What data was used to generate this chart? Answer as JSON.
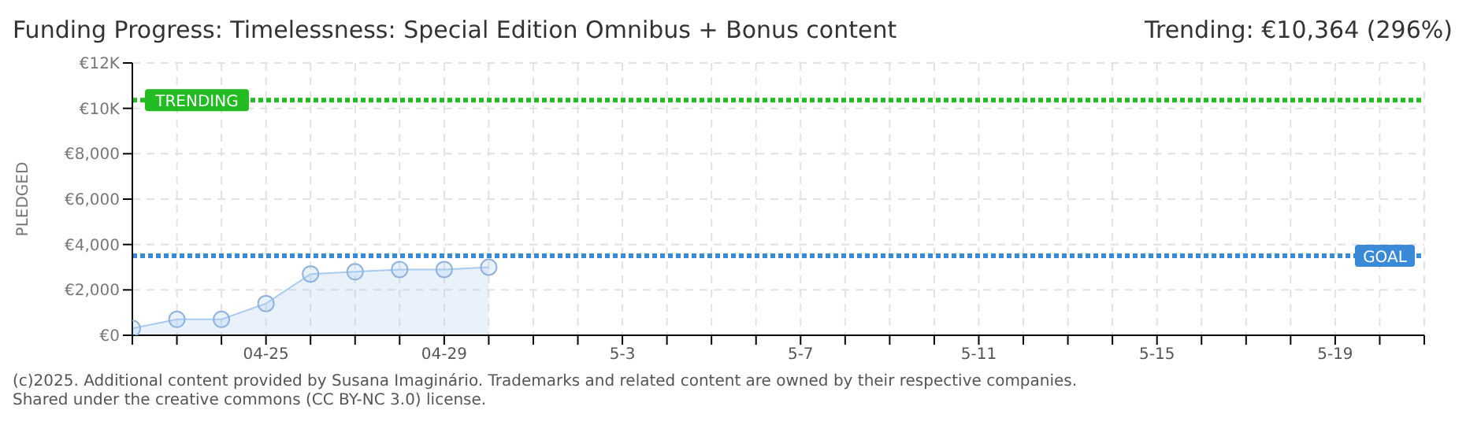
{
  "chart_data": {
    "type": "area",
    "title": "Funding Progress: Timelessness: Special Edition Omnibus + Bonus content",
    "subtitle": "Trending: €10,364 (296%)",
    "ylabel": "PLEDGED",
    "categories": [
      null,
      null,
      null,
      "04-25",
      null,
      null,
      null,
      "04-29",
      null,
      null,
      null,
      "5-3",
      null,
      null,
      null,
      "5-7",
      null,
      null,
      null,
      "5-11",
      null,
      null,
      null,
      "5-15",
      null,
      null,
      null,
      "5-19",
      null,
      null
    ],
    "series": [
      {
        "color": "#a8cbef",
        "values": [
          300,
          700,
          700,
          1400,
          2700,
          2800,
          2900,
          2900,
          3000,
          null,
          null,
          null,
          null,
          null,
          null,
          null,
          null,
          null,
          null,
          null,
          null,
          null,
          null,
          null,
          null,
          null,
          null,
          null,
          null,
          null
        ]
      }
    ],
    "ylim": [
      0,
      12000
    ],
    "yticks": [
      {
        "value": 0,
        "label": "€0"
      },
      {
        "value": 2000,
        "label": "€2,000"
      },
      {
        "value": 4000,
        "label": "€4,000"
      },
      {
        "value": 6000,
        "label": "€6,000"
      },
      {
        "value": 8000,
        "label": "€8,000"
      },
      {
        "value": 10000,
        "label": "€10K"
      },
      {
        "value": 12000,
        "label": "€12K"
      }
    ],
    "ref_lines": [
      {
        "axis": "y",
        "value": 10364,
        "label": "TRENDING",
        "color": "#22bb22",
        "line_style": "dotted"
      },
      {
        "axis": "y",
        "value": 3500,
        "label": "GOAL",
        "color": "#3a8ad8",
        "line_style": "dotted"
      }
    ],
    "grid": true,
    "marker": "circle",
    "annotations": [
      "(c)2025. Additional content provided by Susana Imaginário. Trademarks and related content are owned by their respective companies.",
      "Shared under the creative commons (CC BY-NC 3.0) license."
    ]
  }
}
